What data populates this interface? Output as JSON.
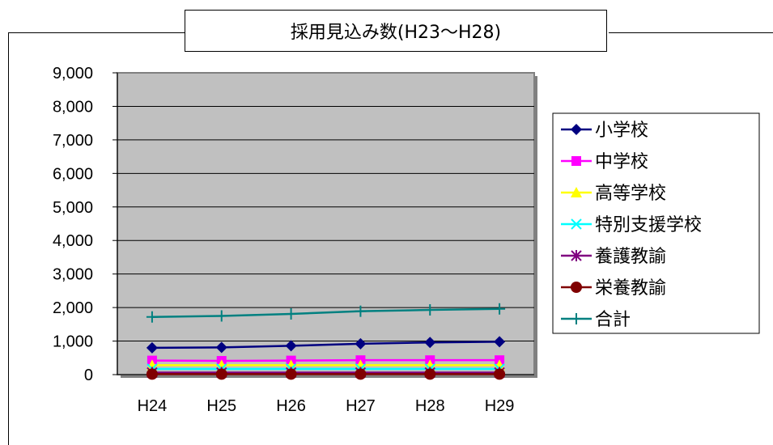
{
  "chart_data": {
    "type": "line",
    "title": "採用見込み数(H23～H28)",
    "categories": [
      "H24",
      "H25",
      "H26",
      "H27",
      "H28",
      "H29"
    ],
    "ylim": [
      0,
      9000
    ],
    "yticks": [
      "0",
      "1,000",
      "2,000",
      "3,000",
      "4,000",
      "5,000",
      "6,000",
      "7,000",
      "8,000",
      "9,000"
    ],
    "grid": true,
    "legend_position": "right",
    "series": [
      {
        "name": "小学校",
        "values": [
          800,
          810,
          860,
          920,
          960,
          980
        ],
        "color": "#000080",
        "marker": "diamond"
      },
      {
        "name": "中学校",
        "values": [
          420,
          410,
          420,
          430,
          430,
          430
        ],
        "color": "#FF00FF",
        "marker": "square"
      },
      {
        "name": "高等学校",
        "values": [
          280,
          280,
          280,
          280,
          280,
          280
        ],
        "color": "#FFFF00",
        "marker": "triangle"
      },
      {
        "name": "特別支援学校",
        "values": [
          170,
          170,
          170,
          170,
          170,
          170
        ],
        "color": "#00FFFF",
        "marker": "x"
      },
      {
        "name": "養護教諭",
        "values": [
          60,
          60,
          60,
          60,
          60,
          60
        ],
        "color": "#800080",
        "marker": "asterisk"
      },
      {
        "name": "栄養教諭",
        "values": [
          15,
          15,
          15,
          15,
          15,
          15
        ],
        "color": "#800000",
        "marker": "circle"
      },
      {
        "name": "合計",
        "values": [
          1720,
          1750,
          1810,
          1890,
          1930,
          1960
        ],
        "color": "#008080",
        "marker": "plus"
      }
    ]
  }
}
